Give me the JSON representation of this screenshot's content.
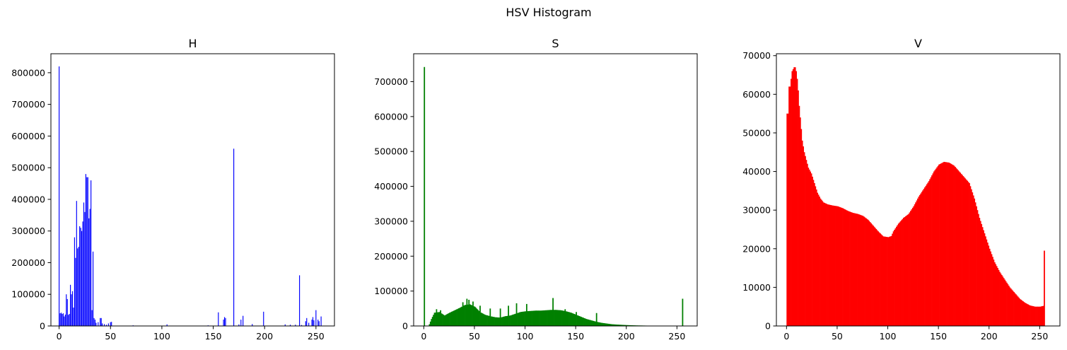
{
  "figure": {
    "suptitle": "HSV Histogram"
  },
  "chart_data": [
    {
      "type": "bar",
      "title": "H",
      "color": "#0000ff",
      "xlabel": "",
      "ylabel": "",
      "xlim": [
        -8,
        268
      ],
      "ylim": [
        0,
        860000
      ],
      "xticks": [
        0,
        50,
        100,
        150,
        200,
        250
      ],
      "yticks": [
        0,
        100000,
        200000,
        300000,
        400000,
        500000,
        600000,
        700000,
        800000
      ],
      "bin_width": 0.8,
      "points": [
        [
          0,
          820000
        ],
        [
          1,
          40000
        ],
        [
          2,
          42000
        ],
        [
          3,
          38000
        ],
        [
          4,
          40000
        ],
        [
          5,
          30000
        ],
        [
          6,
          36000
        ],
        [
          7,
          100000
        ],
        [
          8,
          85000
        ],
        [
          9,
          35000
        ],
        [
          10,
          38000
        ],
        [
          11,
          130000
        ],
        [
          12,
          100000
        ],
        [
          13,
          110000
        ],
        [
          14,
          58000
        ],
        [
          15,
          280000
        ],
        [
          16,
          215000
        ],
        [
          17,
          395000
        ],
        [
          18,
          245000
        ],
        [
          19,
          250000
        ],
        [
          20,
          315000
        ],
        [
          21,
          310000
        ],
        [
          22,
          300000
        ],
        [
          23,
          330000
        ],
        [
          24,
          390000
        ],
        [
          25,
          360000
        ],
        [
          26,
          480000
        ],
        [
          27,
          470000
        ],
        [
          28,
          470000
        ],
        [
          29,
          340000
        ],
        [
          30,
          370000
        ],
        [
          31,
          460000
        ],
        [
          32,
          50000
        ],
        [
          33,
          235000
        ],
        [
          34,
          25000
        ],
        [
          35,
          20000
        ],
        [
          36,
          10000
        ],
        [
          38,
          12000
        ],
        [
          40,
          25000
        ],
        [
          41,
          25000
        ],
        [
          42,
          8000
        ],
        [
          44,
          6000
        ],
        [
          46,
          4000
        ],
        [
          48,
          8000
        ],
        [
          50,
          12000
        ],
        [
          51,
          13000
        ],
        [
          72,
          2000
        ],
        [
          105,
          5000
        ],
        [
          145,
          2000
        ],
        [
          155,
          43000
        ],
        [
          160,
          20000
        ],
        [
          161,
          28000
        ],
        [
          162,
          25000
        ],
        [
          170,
          560000
        ],
        [
          175,
          5000
        ],
        [
          177,
          20000
        ],
        [
          179,
          32000
        ],
        [
          188,
          6000
        ],
        [
          199,
          45000
        ],
        [
          220,
          5000
        ],
        [
          225,
          4000
        ],
        [
          230,
          4000
        ],
        [
          234,
          160000
        ],
        [
          236,
          3000
        ],
        [
          240,
          15000
        ],
        [
          241,
          25000
        ],
        [
          243,
          10000
        ],
        [
          246,
          20000
        ],
        [
          247,
          28000
        ],
        [
          248,
          18000
        ],
        [
          250,
          50000
        ],
        [
          252,
          20000
        ],
        [
          253,
          15000
        ],
        [
          255,
          30000
        ]
      ]
    },
    {
      "type": "bar",
      "title": "S",
      "color": "#008000",
      "xlabel": "",
      "ylabel": "",
      "xlim": [
        -10,
        270
      ],
      "ylim": [
        0,
        780000
      ],
      "xticks": [
        0,
        50,
        100,
        150,
        200,
        250
      ],
      "yticks": [
        0,
        100000,
        200000,
        300000,
        400000,
        500000,
        600000,
        700000
      ],
      "bin_width": 1,
      "points_first": [
        [
          0,
          742000
        ]
      ],
      "body_knots": [
        [
          4,
          0
        ],
        [
          5,
          5000
        ],
        [
          7,
          20000
        ],
        [
          10,
          38000
        ],
        [
          15,
          40000
        ],
        [
          20,
          30000
        ],
        [
          25,
          38000
        ],
        [
          30,
          45000
        ],
        [
          35,
          52000
        ],
        [
          40,
          60000
        ],
        [
          45,
          62000
        ],
        [
          50,
          55000
        ],
        [
          55,
          40000
        ],
        [
          60,
          32000
        ],
        [
          65,
          28000
        ],
        [
          70,
          25000
        ],
        [
          75,
          24000
        ],
        [
          80,
          28000
        ],
        [
          85,
          30000
        ],
        [
          90,
          35000
        ],
        [
          95,
          40000
        ],
        [
          100,
          42000
        ],
        [
          105,
          43000
        ],
        [
          110,
          44000
        ],
        [
          115,
          44000
        ],
        [
          120,
          45000
        ],
        [
          125,
          46000
        ],
        [
          130,
          46000
        ],
        [
          135,
          45000
        ],
        [
          140,
          42000
        ],
        [
          145,
          38000
        ],
        [
          150,
          32000
        ],
        [
          155,
          26000
        ],
        [
          160,
          20000
        ],
        [
          165,
          16000
        ],
        [
          170,
          12000
        ],
        [
          175,
          9000
        ],
        [
          180,
          7000
        ],
        [
          185,
          5000
        ],
        [
          190,
          4000
        ],
        [
          200,
          2500
        ],
        [
          210,
          1500
        ],
        [
          220,
          1000
        ],
        [
          230,
          500
        ],
        [
          237,
          200
        ],
        [
          238,
          0
        ]
      ],
      "spikes": [
        [
          12,
          48000
        ],
        [
          16,
          45000
        ],
        [
          38,
          68000
        ],
        [
          42,
          78000
        ],
        [
          44,
          75000
        ],
        [
          48,
          70000
        ],
        [
          55,
          58000
        ],
        [
          65,
          50000
        ],
        [
          75,
          50000
        ],
        [
          83,
          58000
        ],
        [
          91,
          65000
        ],
        [
          101,
          63000
        ],
        [
          127,
          80000
        ],
        [
          139,
          48000
        ],
        [
          150,
          40000
        ],
        [
          170,
          37000
        ],
        [
          255,
          78000
        ]
      ]
    },
    {
      "type": "bar",
      "title": "V",
      "color": "#ff0000",
      "xlabel": "",
      "ylabel": "",
      "xlim": [
        -10,
        270
      ],
      "ylim": [
        0,
        70500
      ],
      "xticks": [
        0,
        50,
        100,
        150,
        200,
        250
      ],
      "yticks": [
        0,
        10000,
        20000,
        30000,
        40000,
        50000,
        60000,
        70000
      ],
      "bin_width": 1,
      "knots": [
        [
          0,
          55000
        ],
        [
          1,
          55000
        ],
        [
          2,
          62000
        ],
        [
          3,
          62000
        ],
        [
          4,
          64000
        ],
        [
          5,
          66000
        ],
        [
          6,
          66500
        ],
        [
          7,
          67000
        ],
        [
          8,
          67000
        ],
        [
          9,
          66000
        ],
        [
          10,
          64000
        ],
        [
          11,
          61000
        ],
        [
          12,
          57000
        ],
        [
          13,
          54000
        ],
        [
          14,
          51000
        ],
        [
          15,
          48000
        ],
        [
          17,
          45000
        ],
        [
          19,
          43000
        ],
        [
          21,
          41000
        ],
        [
          24,
          39500
        ],
        [
          27,
          37000
        ],
        [
          30,
          34500
        ],
        [
          33,
          33000
        ],
        [
          36,
          32000
        ],
        [
          40,
          31500
        ],
        [
          45,
          31200
        ],
        [
          50,
          31000
        ],
        [
          55,
          30500
        ],
        [
          60,
          29800
        ],
        [
          65,
          29300
        ],
        [
          70,
          29000
        ],
        [
          75,
          28500
        ],
        [
          80,
          27500
        ],
        [
          85,
          26000
        ],
        [
          90,
          24500
        ],
        [
          95,
          23200
        ],
        [
          100,
          23000
        ],
        [
          103,
          23300
        ],
        [
          105,
          24500
        ],
        [
          110,
          26500
        ],
        [
          115,
          28000
        ],
        [
          120,
          29000
        ],
        [
          125,
          31000
        ],
        [
          130,
          33500
        ],
        [
          135,
          35500
        ],
        [
          140,
          37500
        ],
        [
          145,
          40000
        ],
        [
          150,
          41800
        ],
        [
          155,
          42500
        ],
        [
          160,
          42300
        ],
        [
          165,
          41500
        ],
        [
          170,
          40000
        ],
        [
          175,
          38500
        ],
        [
          180,
          37000
        ],
        [
          185,
          33000
        ],
        [
          190,
          28000
        ],
        [
          195,
          24000
        ],
        [
          200,
          20000
        ],
        [
          205,
          16500
        ],
        [
          210,
          14000
        ],
        [
          215,
          12000
        ],
        [
          220,
          10000
        ],
        [
          225,
          8500
        ],
        [
          230,
          7000
        ],
        [
          235,
          6000
        ],
        [
          240,
          5300
        ],
        [
          245,
          5000
        ],
        [
          250,
          5000
        ],
        [
          253,
          5200
        ],
        [
          254,
          19500
        ]
      ]
    }
  ]
}
